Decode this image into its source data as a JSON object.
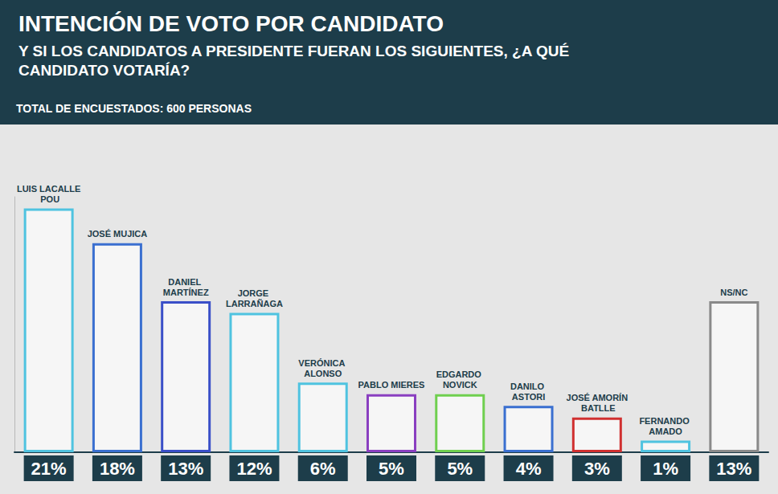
{
  "chart_data": {
    "type": "bar",
    "title": "INTENCIÓN DE VOTO POR CANDIDATO",
    "subtitle": "Y SI LOS CANDIDATOS A PRESIDENTE FUERAN LOS SIGUIENTES, ¿A QUÉ CANDIDATO VOTARÍA?",
    "annotations": [
      "TOTAL DE ENCUESTADOS: 600 PERSONAS"
    ],
    "categories": [
      "LUIS LACALLE POU",
      "JOSÉ MUJICA",
      "DANIEL MARTÍNEZ",
      "JORGE LARRAÑAGA",
      "VERÓNICA ALONSO",
      "PABLO MIERES",
      "EDGARDO NOVICK",
      "DANILO ASTORI",
      "JOSÉ AMORÍN BATLLE",
      "FERNANDO AMADO",
      "NS/NC"
    ],
    "values": [
      21,
      18,
      13,
      12,
      6,
      5,
      5,
      4,
      3,
      1,
      13
    ],
    "value_labels": [
      "21%",
      "18%",
      "13%",
      "12%",
      "6%",
      "5%",
      "5%",
      "4%",
      "3%",
      "1%",
      "13%"
    ],
    "colors": [
      "#4fc3e0",
      "#3a6fd0",
      "#3a4fc8",
      "#4fc3e0",
      "#4fc3e0",
      "#8a3fc0",
      "#6fcf4f",
      "#3a6fd0",
      "#d03030",
      "#4fc3e0",
      "#8a8a8a"
    ],
    "ylim": [
      0,
      22
    ],
    "grid": false,
    "data_labels": true,
    "tick_labels": false
  }
}
